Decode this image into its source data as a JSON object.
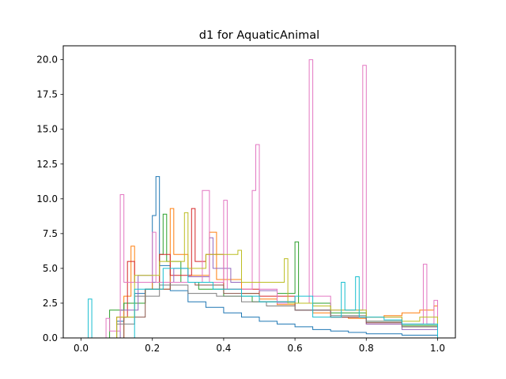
{
  "chart_data": {
    "type": "histogram-step",
    "title": "d1 for AquaticAnimal",
    "xlabel": "",
    "ylabel": "",
    "xlim": [
      -0.05,
      1.05
    ],
    "ylim": [
      0,
      21
    ],
    "x_ticks": [
      0.0,
      0.2,
      0.4,
      0.6,
      0.8,
      1.0
    ],
    "x_tick_labels": [
      "0.0",
      "0.2",
      "0.4",
      "0.6",
      "0.8",
      "1.0"
    ],
    "y_ticks": [
      0.0,
      2.5,
      5.0,
      7.5,
      10.0,
      12.5,
      15.0,
      17.5,
      20.0
    ],
    "y_tick_labels": [
      "0.0",
      "2.5",
      "5.0",
      "7.5",
      "10.0",
      "12.5",
      "15.0",
      "17.5",
      "20.0"
    ],
    "bin_width": 0.01,
    "colors": [
      "#1f77b4",
      "#ff7f0e",
      "#2ca02c",
      "#d62728",
      "#9467bd",
      "#8c564b",
      "#e377c2",
      "#7f7f7f",
      "#bcbd22",
      "#17becf"
    ],
    "series": [
      {
        "color": "#17becf",
        "values": [
          [
            0.02,
            2.8
          ],
          [
            0.03,
            0.0
          ]
        ]
      },
      {
        "color": "#1f77b4",
        "values": [
          [
            0.1,
            1.2
          ],
          [
            0.12,
            2.5
          ],
          [
            0.15,
            3.2
          ],
          [
            0.18,
            3.5
          ],
          [
            0.2,
            8.8
          ],
          [
            0.21,
            11.6
          ],
          [
            0.22,
            5.2
          ],
          [
            0.25,
            3.4
          ],
          [
            0.3,
            2.6
          ],
          [
            0.35,
            2.2
          ],
          [
            0.4,
            1.8
          ],
          [
            0.45,
            1.5
          ],
          [
            0.5,
            1.2
          ],
          [
            0.55,
            1.0
          ],
          [
            0.6,
            0.8
          ],
          [
            0.65,
            0.6
          ],
          [
            0.7,
            0.5
          ],
          [
            0.75,
            0.4
          ],
          [
            0.8,
            0.3
          ],
          [
            0.85,
            0.3
          ],
          [
            0.9,
            0.2
          ],
          [
            0.95,
            0.2
          ],
          [
            1.0,
            0.0
          ]
        ]
      },
      {
        "color": "#ff7f0e",
        "values": [
          [
            0.12,
            3.0
          ],
          [
            0.14,
            6.6
          ],
          [
            0.15,
            4.0
          ],
          [
            0.2,
            3.5
          ],
          [
            0.25,
            9.3
          ],
          [
            0.26,
            6.0
          ],
          [
            0.3,
            4.5
          ],
          [
            0.36,
            7.6
          ],
          [
            0.38,
            4.2
          ],
          [
            0.45,
            3.2
          ],
          [
            0.5,
            2.8
          ],
          [
            0.55,
            2.4
          ],
          [
            0.6,
            2.0
          ],
          [
            0.65,
            1.8
          ],
          [
            0.7,
            1.5
          ],
          [
            0.75,
            1.4
          ],
          [
            0.8,
            1.5
          ],
          [
            0.85,
            1.6
          ],
          [
            0.9,
            1.8
          ],
          [
            0.95,
            2.0
          ],
          [
            0.99,
            2.3
          ],
          [
            1.0,
            0.0
          ]
        ]
      },
      {
        "color": "#2ca02c",
        "values": [
          [
            0.08,
            2.0
          ],
          [
            0.12,
            2.5
          ],
          [
            0.18,
            3.5
          ],
          [
            0.22,
            6.0
          ],
          [
            0.23,
            8.9
          ],
          [
            0.24,
            5.5
          ],
          [
            0.28,
            4.0
          ],
          [
            0.33,
            3.5
          ],
          [
            0.4,
            3.0
          ],
          [
            0.48,
            2.6
          ],
          [
            0.55,
            3.2
          ],
          [
            0.6,
            6.9
          ],
          [
            0.61,
            2.5
          ],
          [
            0.7,
            1.8
          ],
          [
            0.8,
            1.2
          ],
          [
            0.9,
            0.9
          ],
          [
            1.0,
            0.0
          ]
        ]
      },
      {
        "color": "#d62728",
        "values": [
          [
            0.1,
            1.5
          ],
          [
            0.13,
            5.5
          ],
          [
            0.15,
            4.0
          ],
          [
            0.22,
            6.0
          ],
          [
            0.25,
            4.5
          ],
          [
            0.31,
            9.3
          ],
          [
            0.32,
            5.5
          ],
          [
            0.35,
            6.0
          ],
          [
            0.4,
            3.5
          ],
          [
            0.5,
            3.0
          ],
          [
            0.6,
            2.0
          ],
          [
            0.7,
            1.5
          ],
          [
            0.8,
            1.0
          ],
          [
            0.9,
            0.8
          ],
          [
            1.0,
            0.0
          ]
        ]
      },
      {
        "color": "#9467bd",
        "values": [
          [
            0.11,
            2.0
          ],
          [
            0.16,
            4.5
          ],
          [
            0.2,
            4.0
          ],
          [
            0.26,
            5.0
          ],
          [
            0.3,
            4.4
          ],
          [
            0.36,
            7.2
          ],
          [
            0.37,
            5.0
          ],
          [
            0.42,
            4.0
          ],
          [
            0.5,
            3.4
          ],
          [
            0.55,
            2.6
          ],
          [
            0.6,
            2.0
          ],
          [
            0.7,
            1.5
          ],
          [
            0.8,
            1.0
          ],
          [
            0.9,
            0.6
          ],
          [
            1.0,
            0.0
          ]
        ]
      },
      {
        "color": "#8c564b",
        "values": [
          [
            0.12,
            1.5
          ],
          [
            0.18,
            3.5
          ],
          [
            0.25,
            4.0
          ],
          [
            0.32,
            3.8
          ],
          [
            0.4,
            3.2
          ],
          [
            0.5,
            2.6
          ],
          [
            0.6,
            2.0
          ],
          [
            0.7,
            1.5
          ],
          [
            0.8,
            1.1
          ],
          [
            0.9,
            0.8
          ],
          [
            1.0,
            0.0
          ]
        ]
      },
      {
        "color": "#e377c2",
        "values": [
          [
            0.07,
            1.4
          ],
          [
            0.08,
            0.5
          ],
          [
            0.11,
            10.3
          ],
          [
            0.12,
            4.0
          ],
          [
            0.2,
            7.6
          ],
          [
            0.21,
            4.0
          ],
          [
            0.34,
            10.6
          ],
          [
            0.36,
            4.0
          ],
          [
            0.4,
            9.9
          ],
          [
            0.41,
            3.5
          ],
          [
            0.48,
            10.6
          ],
          [
            0.49,
            13.9
          ],
          [
            0.5,
            3.5
          ],
          [
            0.55,
            2.5
          ],
          [
            0.64,
            20.0
          ],
          [
            0.65,
            3.0
          ],
          [
            0.7,
            2.0
          ],
          [
            0.79,
            19.6
          ],
          [
            0.8,
            1.5
          ],
          [
            0.85,
            1.5
          ],
          [
            0.9,
            1.0
          ],
          [
            0.96,
            5.3
          ],
          [
            0.97,
            1.0
          ],
          [
            0.99,
            2.7
          ],
          [
            1.0,
            0.0
          ]
        ]
      },
      {
        "color": "#7f7f7f",
        "values": [
          [
            0.1,
            1.0
          ],
          [
            0.15,
            3.0
          ],
          [
            0.22,
            3.8
          ],
          [
            0.3,
            3.2
          ],
          [
            0.38,
            3.0
          ],
          [
            0.45,
            2.6
          ],
          [
            0.52,
            2.3
          ],
          [
            0.6,
            2.0
          ],
          [
            0.7,
            1.6
          ],
          [
            0.8,
            1.2
          ],
          [
            0.9,
            0.8
          ],
          [
            1.0,
            0.0
          ]
        ]
      },
      {
        "color": "#bcbd22",
        "values": [
          [
            0.1,
            1.5
          ],
          [
            0.15,
            4.5
          ],
          [
            0.22,
            5.5
          ],
          [
            0.29,
            9.0
          ],
          [
            0.3,
            5.0
          ],
          [
            0.35,
            6.0
          ],
          [
            0.44,
            6.3
          ],
          [
            0.45,
            4.0
          ],
          [
            0.57,
            5.7
          ],
          [
            0.58,
            2.5
          ],
          [
            0.65,
            2.3
          ],
          [
            0.7,
            2.0
          ],
          [
            0.8,
            1.5
          ],
          [
            0.9,
            1.2
          ],
          [
            0.95,
            1.5
          ],
          [
            1.0,
            0.0
          ]
        ]
      },
      {
        "color": "#17becf",
        "values": [
          [
            0.15,
            3.5
          ],
          [
            0.23,
            5.0
          ],
          [
            0.3,
            4.0
          ],
          [
            0.37,
            3.5
          ],
          [
            0.45,
            3.0
          ],
          [
            0.5,
            2.6
          ],
          [
            0.6,
            3.0
          ],
          [
            0.65,
            1.5
          ],
          [
            0.73,
            4.0
          ],
          [
            0.74,
            2.0
          ],
          [
            0.77,
            4.4
          ],
          [
            0.78,
            1.5
          ],
          [
            0.85,
            1.3
          ],
          [
            0.9,
            1.0
          ],
          [
            1.0,
            0.0
          ]
        ]
      }
    ]
  }
}
